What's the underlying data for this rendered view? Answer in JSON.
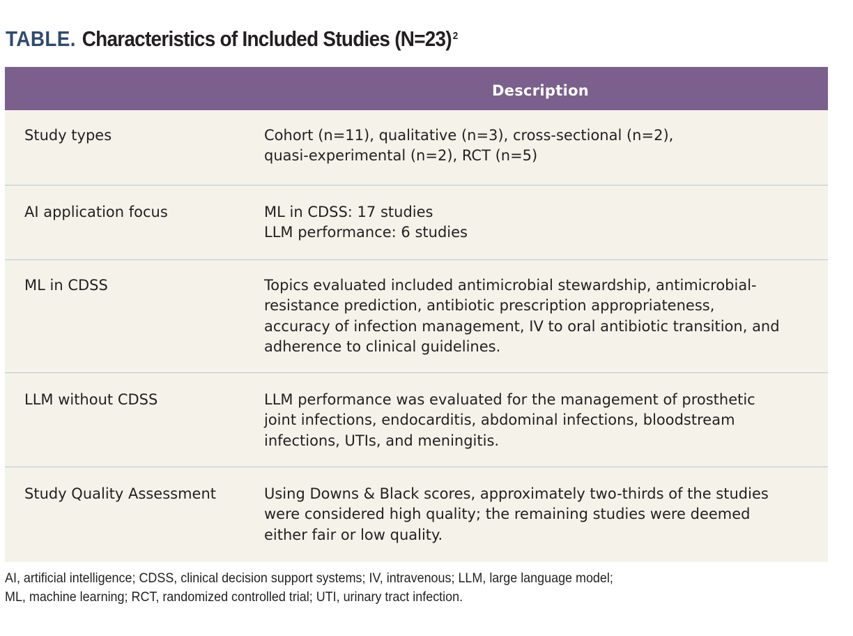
{
  "table": {
    "label": "TABLE.",
    "title": "Characteristics of Included Studies (N=23)",
    "title_ref": "2",
    "column_header": "Description",
    "rows": [
      {
        "label": "Study types",
        "lines": [
          "Cohort (n=11), qualitative (n=3), cross-sectional (n=2),",
          "quasi-experimental (n=2), RCT (n=5)"
        ]
      },
      {
        "label": "AI application focus",
        "lines": [
          "ML in CDSS: 17 studies",
          "LLM performance: 6 studies"
        ]
      },
      {
        "label": "ML in CDSS",
        "lines": [
          "Topics evaluated included antimicrobial stewardship, antimicrobial-",
          "resistance prediction, antibiotic prescription appropriateness,",
          "accuracy of infection management, IV to oral antibiotic transition, and",
          "adherence to clinical guidelines."
        ]
      },
      {
        "label": "LLM without CDSS",
        "lines": [
          "LLM performance was evaluated for the management of prosthetic",
          "joint infections, endocarditis, abdominal infections, bloodstream",
          "infections, UTIs, and meningitis."
        ]
      },
      {
        "label": "Study Quality Assessment",
        "lines": [
          "Using Downs & Black scores, approximately two-thirds of the studies",
          "were considered high quality; the remaining studies were deemed",
          "either fair or low quality."
        ]
      }
    ],
    "footnote_lines": [
      "AI, artificial intelligence; CDSS, clinical decision support systems; IV, intravenous; LLM, large language model;",
      "ML, machine learning; RCT, randomized controlled trial; UTI, urinary tract infection."
    ]
  }
}
